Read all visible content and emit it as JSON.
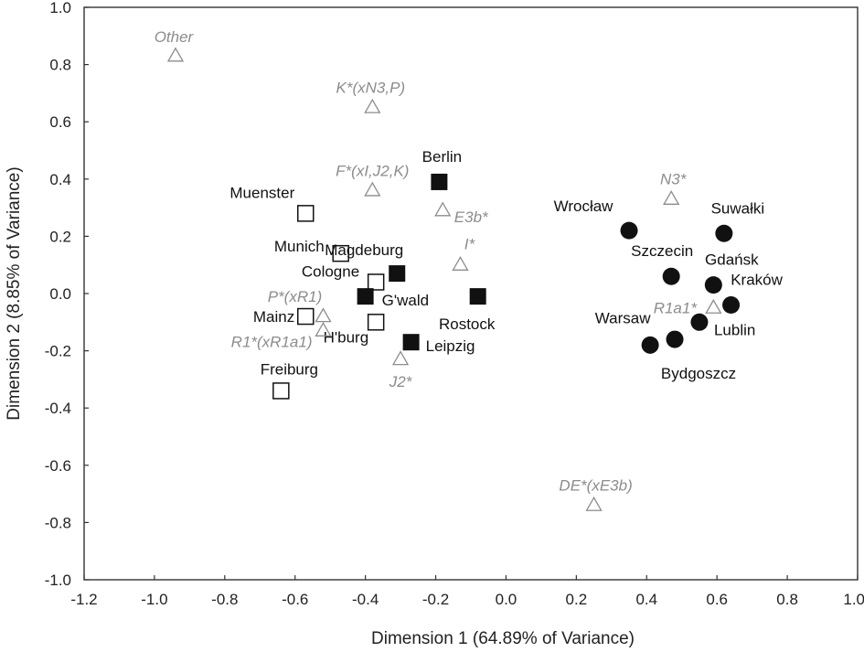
{
  "chart_data": {
    "type": "scatter",
    "title": "",
    "xlabel": "Dimension 1 (64.89% of Variance)",
    "ylabel": "Dimension 2 (8.85% of Variance)",
    "xlim": [
      -1.2,
      1.0
    ],
    "ylim": [
      -1.0,
      1.0
    ],
    "x_ticks": [
      -1.2,
      -1.0,
      -0.8,
      -0.6,
      -0.4,
      -0.2,
      0.0,
      0.2,
      0.4,
      0.6,
      0.8,
      1.0
    ],
    "x_tick_labels": [
      "-1.2",
      "-1.0",
      "-0.8",
      "-0.6",
      "-0.4",
      "-0.2",
      "0.0",
      "0.2",
      "0.4",
      "0.6",
      "0.8",
      "1.0"
    ],
    "y_ticks": [
      1.0,
      0.8,
      0.6,
      0.4,
      0.2,
      0.0,
      -0.2,
      -0.4,
      -0.6,
      -0.8,
      -1.0
    ],
    "y_tick_labels": [
      "1.0",
      "0.8",
      "0.6",
      "0.4",
      "0.2",
      "0.0",
      "-0.2",
      "-0.4",
      "-0.6",
      "-0.8",
      "-1.0"
    ],
    "grid": false,
    "legend": "none",
    "colors": {
      "population": "#111111",
      "haplogroup": "#8c8c8c"
    },
    "series": [
      {
        "marker": "open-square",
        "points": [
          {
            "label": "Muenster",
            "x": -0.57,
            "y": 0.28
          },
          {
            "label": "Munich",
            "x": -0.47,
            "y": 0.14
          },
          {
            "label": "Cologne",
            "x": -0.37,
            "y": 0.04
          },
          {
            "label": "Mainz",
            "x": -0.57,
            "y": -0.08
          },
          {
            "label": "H'burg",
            "x": -0.37,
            "y": -0.1
          },
          {
            "label": "Freiburg",
            "x": -0.64,
            "y": -0.34
          }
        ]
      },
      {
        "marker": "filled-square",
        "points": [
          {
            "label": "Berlin",
            "x": -0.19,
            "y": 0.39
          },
          {
            "label": "Magdeburg",
            "x": -0.31,
            "y": 0.07
          },
          {
            "label": "G'wald",
            "x": -0.4,
            "y": -0.01
          },
          {
            "label": "Rostock",
            "x": -0.08,
            "y": -0.01
          },
          {
            "label": "Leipzig",
            "x": -0.27,
            "y": -0.17
          }
        ]
      },
      {
        "marker": "filled-circle",
        "points": [
          {
            "label": "Wrocław",
            "x": 0.35,
            "y": 0.22
          },
          {
            "label": "Suwałki",
            "x": 0.62,
            "y": 0.21
          },
          {
            "label": "Szczecin",
            "x": 0.47,
            "y": 0.06
          },
          {
            "label": "Gdańsk",
            "x": 0.59,
            "y": 0.03
          },
          {
            "label": "Kraków",
            "x": 0.64,
            "y": -0.04
          },
          {
            "label": "Lublin",
            "x": 0.55,
            "y": -0.1
          },
          {
            "label": "Warsaw",
            "x": 0.41,
            "y": -0.18
          },
          {
            "label": "Bydgoszcz",
            "x": 0.48,
            "y": -0.16
          }
        ]
      },
      {
        "marker": "open-triangle",
        "points": [
          {
            "label": "Other",
            "x": -0.94,
            "y": 0.83
          },
          {
            "label": "K*(xN3,P)",
            "x": -0.38,
            "y": 0.65
          },
          {
            "label": "F*(xI,J2,K)",
            "x": -0.38,
            "y": 0.36
          },
          {
            "label": "E3b*",
            "x": -0.18,
            "y": 0.29
          },
          {
            "label": "I*",
            "x": -0.13,
            "y": 0.1
          },
          {
            "label": "P*(xR1)",
            "x": -0.52,
            "y": -0.08
          },
          {
            "label": "R1*(xR1a1)",
            "x": -0.52,
            "y": -0.13
          },
          {
            "label": "J2*",
            "x": -0.3,
            "y": -0.23
          },
          {
            "label": "N3*",
            "x": 0.47,
            "y": 0.33
          },
          {
            "label": "R1a1*",
            "x": 0.59,
            "y": -0.05
          },
          {
            "label": "DE*(xE3b)",
            "x": 0.25,
            "y": -0.74
          }
        ]
      }
    ]
  }
}
